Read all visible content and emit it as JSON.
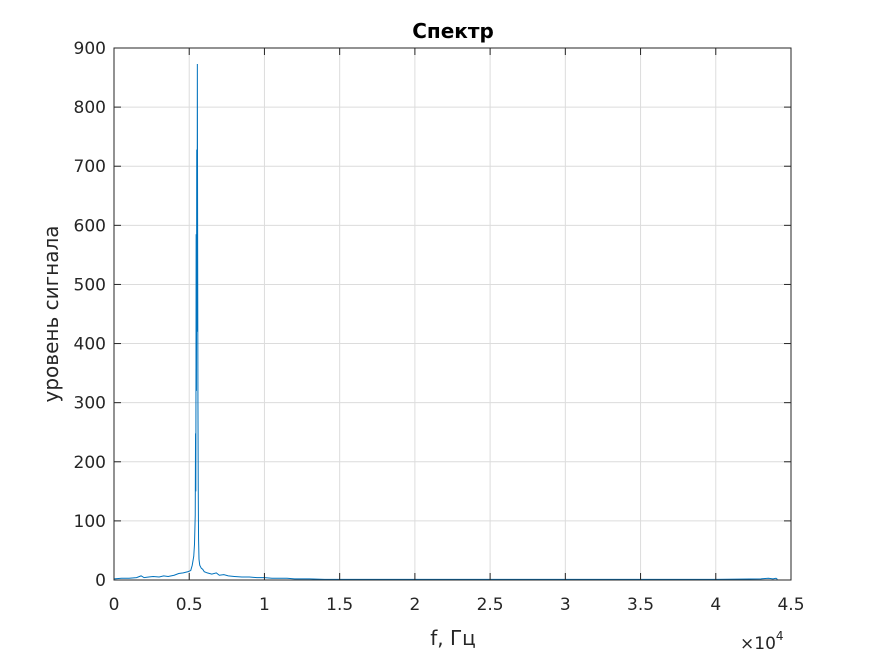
{
  "chart_data": {
    "type": "line",
    "title": "Спектр",
    "xlabel": "f, Гц",
    "ylabel": "уровень сигнала",
    "xlim": [
      0,
      45000
    ],
    "ylim": [
      0,
      900
    ],
    "x_scale_exponent": {
      "times": "×",
      "base": "10",
      "power": "4"
    },
    "x_ticks": [
      0,
      5000,
      10000,
      15000,
      20000,
      25000,
      30000,
      35000,
      40000,
      45000
    ],
    "x_tick_labels": [
      "0",
      "0.5",
      "1",
      "1.5",
      "2",
      "2.5",
      "3",
      "3.5",
      "4",
      "4.5"
    ],
    "y_ticks": [
      0,
      100,
      200,
      300,
      400,
      500,
      600,
      700,
      800,
      900
    ],
    "y_tick_labels": [
      "0",
      "100",
      "200",
      "300",
      "400",
      "500",
      "600",
      "700",
      "800",
      "900"
    ],
    "grid": true,
    "box": true,
    "colors": {
      "line": "#0072bd",
      "grid": "#dcdcdc",
      "axes": "#262626"
    },
    "series": [
      {
        "x": [
          0,
          500,
          1000,
          1500,
          1800,
          2000,
          2300,
          2600,
          3000,
          3300,
          3600,
          4000,
          4300,
          4600,
          4900,
          5100,
          5200,
          5300,
          5350,
          5400,
          5420,
          5440,
          5460,
          5480,
          5500,
          5520,
          5540,
          5560,
          5580,
          5600,
          5620,
          5650,
          5700,
          5800,
          5900,
          6000,
          6200,
          6500,
          6800,
          7000,
          7300,
          7600,
          8000,
          8500,
          9000,
          9500,
          10000,
          10500,
          11000,
          11500,
          12000,
          12500,
          13000,
          14000,
          15000,
          17000,
          20000,
          25000,
          30000,
          35000,
          40000,
          43000,
          43500,
          43800,
          44000,
          44100
        ],
        "y": [
          2,
          3,
          3,
          4,
          7,
          4,
          5,
          6,
          5,
          7,
          6,
          8,
          11,
          12,
          14,
          16,
          25,
          40,
          60,
          110,
          248,
          150,
          585,
          320,
          728,
          420,
          873,
          560,
          300,
          155,
          70,
          35,
          25,
          20,
          18,
          14,
          12,
          10,
          12,
          8,
          9,
          7,
          6,
          5,
          5,
          4,
          4,
          3,
          3,
          3,
          2,
          2,
          2,
          1,
          1,
          1,
          1,
          1,
          1,
          1,
          1,
          2,
          3,
          2,
          3,
          1
        ]
      }
    ]
  }
}
